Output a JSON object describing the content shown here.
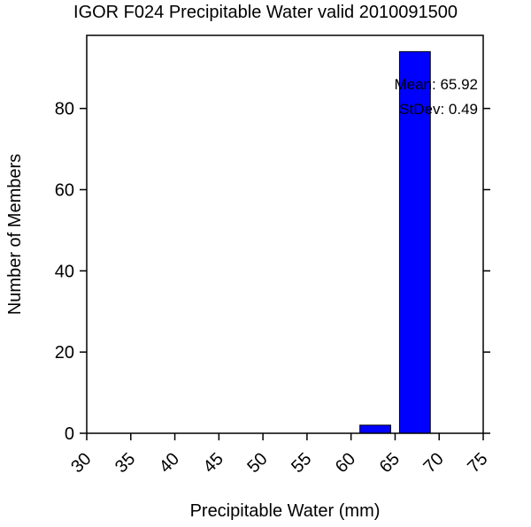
{
  "chart_data": {
    "type": "bar",
    "title": "IGOR F024 Precipitable Water valid 2010091500",
    "xlabel": "Precipitable Water (mm)",
    "ylabel": "Number of Members",
    "xlim": [
      30,
      75
    ],
    "ylim": [
      0,
      98
    ],
    "x_ticks": [
      30,
      35,
      40,
      45,
      50,
      55,
      60,
      65,
      70,
      75
    ],
    "y_ticks": [
      0,
      20,
      40,
      60,
      80
    ],
    "bin_width": 3.5,
    "bars": [
      {
        "x_start": 61,
        "x_end": 64.5,
        "value": 2
      },
      {
        "x_start": 65.5,
        "x_end": 69,
        "value": 94
      }
    ],
    "bar_color": "#0000ff",
    "annotations": {
      "mean": "Mean: 65.92",
      "stdev": "StDev: 0.49"
    },
    "grid": false,
    "legend": "none"
  }
}
